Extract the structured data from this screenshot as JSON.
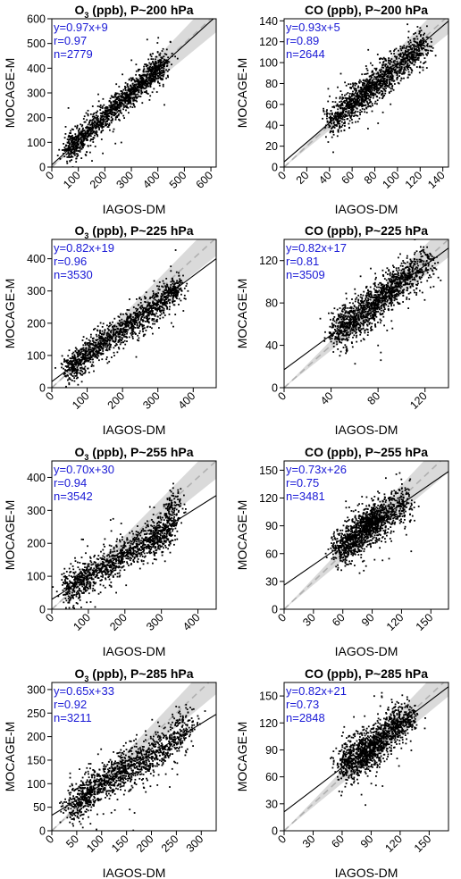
{
  "colors": {
    "points": "#000000",
    "fit_line": "#000000",
    "band": "#d3d3d3",
    "identity_line": "#b0b0b0",
    "stats_text": "#1a1ad6"
  },
  "chart_data": [
    {
      "type": "scatter",
      "title_species": "O",
      "title_sub": "3",
      "title_rest": " (ppb), P~200 hPa",
      "xlabel": "IAGOS-DM",
      "ylabel": "MOCAGE-M",
      "xlim": [
        0,
        620
      ],
      "ylim": [
        0,
        600
      ],
      "xticks": [
        0,
        100,
        200,
        300,
        400,
        500,
        600
      ],
      "yticks": [
        0,
        100,
        200,
        300,
        400,
        500,
        600
      ],
      "fit": {
        "slope": 0.97,
        "intercept": 9
      },
      "stats": [
        "y=0.97x+9",
        "r=0.97",
        "n=2779"
      ],
      "n_points": 2779,
      "cloud": [
        [
          60,
          65
        ],
        [
          100,
          105
        ],
        [
          160,
          165
        ],
        [
          220,
          225
        ],
        [
          280,
          280
        ],
        [
          330,
          330
        ],
        [
          380,
          380
        ],
        [
          430,
          420
        ]
      ],
      "spread": 0.07
    },
    {
      "type": "scatter",
      "title_species": "CO",
      "title_sub": "",
      "title_rest": " (ppb), P~200 hPa",
      "xlabel": "IAGOS-DM",
      "ylabel": "MOCAGE-M",
      "xlim": [
        0,
        145
      ],
      "ylim": [
        0,
        142
      ],
      "xticks": [
        0,
        20,
        40,
        60,
        80,
        100,
        120,
        140
      ],
      "yticks": [
        0,
        20,
        40,
        60,
        80,
        100,
        120,
        140
      ],
      "fit": {
        "slope": 0.93,
        "intercept": 5
      },
      "stats": [
        "y=0.93x+5",
        "r=0.89",
        "n=2644"
      ],
      "n_points": 2644,
      "cloud": [
        [
          40,
          42
        ],
        [
          55,
          55
        ],
        [
          65,
          65
        ],
        [
          75,
          75
        ],
        [
          85,
          83
        ],
        [
          95,
          92
        ],
        [
          110,
          105
        ],
        [
          125,
          118
        ]
      ],
      "spread": 0.09
    },
    {
      "type": "scatter",
      "title_species": "O",
      "title_sub": "3",
      "title_rest": " (ppb), P~225 hPa",
      "xlabel": "IAGOS-DM",
      "ylabel": "MOCAGE-M",
      "xlim": [
        0,
        465
      ],
      "ylim": [
        0,
        460
      ],
      "xticks": [
        0,
        100,
        200,
        300,
        400
      ],
      "yticks": [
        0,
        100,
        200,
        300,
        400
      ],
      "fit": {
        "slope": 0.82,
        "intercept": 19
      },
      "stats": [
        "y=0.82x+19",
        "r=0.96",
        "n=3530"
      ],
      "n_points": 3530,
      "cloud": [
        [
          45,
          55
        ],
        [
          80,
          85
        ],
        [
          130,
          125
        ],
        [
          180,
          165
        ],
        [
          230,
          205
        ],
        [
          280,
          245
        ],
        [
          330,
          285
        ],
        [
          360,
          310
        ]
      ],
      "spread": 0.08
    },
    {
      "type": "scatter",
      "title_species": "CO",
      "title_sub": "",
      "title_rest": " (ppb), P~225 hPa",
      "xlabel": "IAGOS-DM",
      "ylabel": "MOCAGE-M",
      "xlim": [
        0,
        140
      ],
      "ylim": [
        0,
        140
      ],
      "xticks": [
        0,
        40,
        80,
        120
      ],
      "yticks": [
        0,
        40,
        80,
        120
      ],
      "fit": {
        "slope": 0.82,
        "intercept": 17
      },
      "stats": [
        "y=0.82x+17",
        "r=0.81",
        "n=3509"
      ],
      "n_points": 3509,
      "cloud": [
        [
          42,
          50
        ],
        [
          52,
          60
        ],
        [
          62,
          67
        ],
        [
          72,
          75
        ],
        [
          82,
          85
        ],
        [
          92,
          95
        ],
        [
          105,
          105
        ],
        [
          125,
          120
        ]
      ],
      "spread": 0.1
    },
    {
      "type": "scatter",
      "title_species": "O",
      "title_sub": "3",
      "title_rest": " (ppb), P~255 hPa",
      "xlabel": "IAGOS-DM",
      "ylabel": "MOCAGE-M",
      "xlim": [
        0,
        450
      ],
      "ylim": [
        0,
        450
      ],
      "xticks": [
        0,
        100,
        200,
        300,
        400
      ],
      "yticks": [
        0,
        100,
        200,
        300,
        400
      ],
      "fit": {
        "slope": 0.7,
        "intercept": 30
      },
      "stats": [
        "y=0.70x+30",
        "r=0.94",
        "n=3542"
      ],
      "n_points": 3542,
      "cloud": [
        [
          40,
          55
        ],
        [
          80,
          85
        ],
        [
          130,
          120
        ],
        [
          180,
          155
        ],
        [
          230,
          185
        ],
        [
          280,
          210
        ],
        [
          310,
          230
        ],
        [
          340,
          330
        ]
      ],
      "spread": 0.09
    },
    {
      "type": "scatter",
      "title_species": "CO",
      "title_sub": "",
      "title_rest": " (ppb), P~255 hPa",
      "xlabel": "IAGOS-DM",
      "ylabel": "MOCAGE-M",
      "xlim": [
        0,
        168
      ],
      "ylim": [
        0,
        160
      ],
      "xticks": [
        0,
        30,
        60,
        90,
        120,
        150
      ],
      "yticks": [
        0,
        30,
        60,
        90,
        120,
        150
      ],
      "fit": {
        "slope": 0.73,
        "intercept": 26
      },
      "stats": [
        "y=0.73x+26",
        "r=0.75",
        "n=3481"
      ],
      "n_points": 3481,
      "cloud": [
        [
          55,
          62
        ],
        [
          65,
          72
        ],
        [
          75,
          80
        ],
        [
          82,
          86
        ],
        [
          88,
          92
        ],
        [
          95,
          98
        ],
        [
          110,
          105
        ],
        [
          125,
          115
        ]
      ],
      "spread": 0.1
    },
    {
      "type": "scatter",
      "title_species": "O",
      "title_sub": "3",
      "title_rest": " (ppb), P~285 hPa",
      "xlabel": "IAGOS-DM",
      "ylabel": "MOCAGE-M",
      "xlim": [
        0,
        330
      ],
      "ylim": [
        0,
        315
      ],
      "xticks": [
        0,
        50,
        100,
        150,
        200,
        250,
        300
      ],
      "yticks": [
        0,
        50,
        100,
        150,
        200,
        250,
        300
      ],
      "fit": {
        "slope": 0.65,
        "intercept": 33
      },
      "stats": [
        "y=0.65x+33",
        "r=0.92",
        "n=3211"
      ],
      "n_points": 3211,
      "cloud": [
        [
          40,
          48
        ],
        [
          60,
          70
        ],
        [
          90,
          95
        ],
        [
          120,
          115
        ],
        [
          150,
          135
        ],
        [
          190,
          150
        ],
        [
          230,
          180
        ],
        [
          280,
          230
        ]
      ],
      "spread": 0.1
    },
    {
      "type": "scatter",
      "title_species": "CO",
      "title_sub": "",
      "title_rest": " (ppb), P~285 hPa",
      "xlabel": "IAGOS-DM",
      "ylabel": "MOCAGE-M",
      "xlim": [
        0,
        170
      ],
      "ylim": [
        0,
        165
      ],
      "xticks": [
        0,
        30,
        60,
        90,
        120,
        150
      ],
      "yticks": [
        0,
        30,
        60,
        90,
        120,
        150
      ],
      "fit": {
        "slope": 0.82,
        "intercept": 21
      },
      "stats": [
        "y=0.82x+21",
        "r=0.73",
        "n=2848"
      ],
      "n_points": 2848,
      "cloud": [
        [
          60,
          72
        ],
        [
          70,
          78
        ],
        [
          80,
          84
        ],
        [
          88,
          90
        ],
        [
          95,
          96
        ],
        [
          105,
          108
        ],
        [
          118,
          118
        ],
        [
          130,
          128
        ]
      ],
      "spread": 0.1
    }
  ]
}
